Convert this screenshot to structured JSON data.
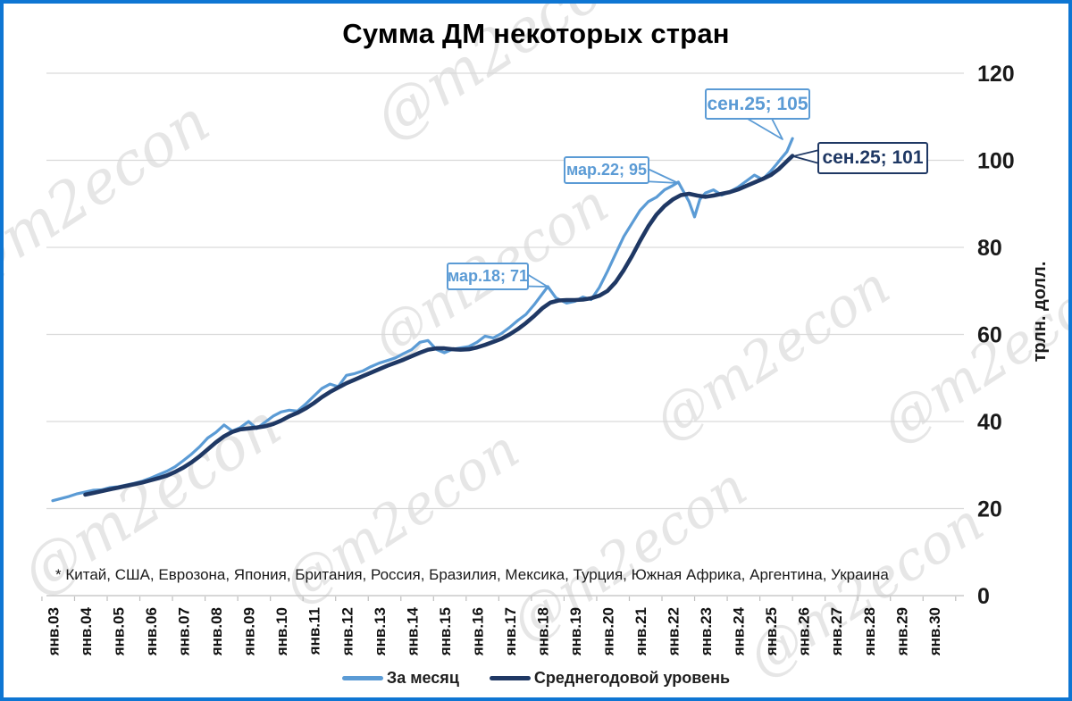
{
  "frame": {
    "border_color": "#0E76D3",
    "background": "#FFFFFF"
  },
  "title": "Сумма ДМ некоторых стран",
  "watermark": {
    "text": "@m2econ",
    "color": "rgba(140,140,140,0.22)"
  },
  "footnote": "* Китай, США, Еврозона, Япония, Британия, Россия, Бразилия, Мексика, Турция, Южная Африка, Аргентина, Украина",
  "y_axis": {
    "title": "трлн. долл.",
    "ticks": [
      0,
      20,
      40,
      60,
      80,
      100,
      120
    ],
    "range": [
      0,
      120
    ]
  },
  "x_axis": {
    "tick_labels": [
      "янв.03",
      "янв.04",
      "янв.05",
      "янв.06",
      "янв.07",
      "янв.08",
      "янв.09",
      "янв.10",
      "янв.11",
      "янв.12",
      "янв.13",
      "янв.14",
      "янв.15",
      "янв.16",
      "янв.17",
      "янв.18",
      "янв.19",
      "янв.20",
      "янв.21",
      "янв.22",
      "янв.23",
      "янв.24",
      "янв.25",
      "янв.26",
      "янв.27",
      "янв.28",
      "янв.29",
      "янв.30"
    ],
    "tick_years": [
      2003,
      2004,
      2005,
      2006,
      2007,
      2008,
      2009,
      2010,
      2011,
      2012,
      2013,
      2014,
      2015,
      2016,
      2017,
      2018,
      2019,
      2020,
      2021,
      2022,
      2023,
      2024,
      2025,
      2026,
      2027,
      2028,
      2029,
      2030
    ]
  },
  "legend": [
    {
      "label": "За месяц",
      "color": "#5B9BD5"
    },
    {
      "label": "Среднегодовой уровень",
      "color": "#1F3864"
    }
  ],
  "annotations": [
    {
      "label": "мар.18; 71",
      "series": "За месяц",
      "x": 2018.17,
      "value": 71,
      "color": "#5B9BD5"
    },
    {
      "label": "мар.22; 95",
      "series": "За месяц",
      "x": 2022.17,
      "value": 95,
      "color": "#5B9BD5"
    },
    {
      "label": "сен.25; 105",
      "series": "За месяц",
      "x": 2025.67,
      "value": 105,
      "color": "#5B9BD5"
    },
    {
      "label": "сен.25; 101",
      "series": "Среднегодовой уровень",
      "x": 2025.67,
      "value": 101,
      "color": "#1F3864"
    }
  ],
  "chart_data": {
    "type": "line",
    "title": "Сумма ДМ некоторых стран",
    "xlabel": "",
    "ylabel": "трлн. долл.",
    "ylim": [
      0,
      120
    ],
    "xlim": [
      2003,
      2030.9
    ],
    "grid": true,
    "legend_position": "bottom",
    "x_unit": "decimal_year",
    "series": [
      {
        "name": "За месяц",
        "color": "#5B9BD5",
        "width": 3.2,
        "points": [
          [
            2003.0,
            21.8
          ],
          [
            2003.25,
            22.3
          ],
          [
            2003.5,
            22.8
          ],
          [
            2003.75,
            23.4
          ],
          [
            2004.0,
            23.8
          ],
          [
            2004.25,
            24.2
          ],
          [
            2004.5,
            24.3
          ],
          [
            2004.75,
            24.8
          ],
          [
            2005.0,
            25.0
          ],
          [
            2005.25,
            25.4
          ],
          [
            2005.5,
            25.8
          ],
          [
            2005.75,
            26.3
          ],
          [
            2006.0,
            27.0
          ],
          [
            2006.25,
            27.8
          ],
          [
            2006.5,
            28.6
          ],
          [
            2006.75,
            29.6
          ],
          [
            2007.0,
            31.0
          ],
          [
            2007.25,
            32.5
          ],
          [
            2007.5,
            34.2
          ],
          [
            2007.75,
            36.2
          ],
          [
            2008.0,
            37.5
          ],
          [
            2008.25,
            39.2
          ],
          [
            2008.5,
            37.8
          ],
          [
            2008.75,
            38.6
          ],
          [
            2009.0,
            40.0
          ],
          [
            2009.25,
            38.4
          ],
          [
            2009.5,
            39.8
          ],
          [
            2009.75,
            41.2
          ],
          [
            2010.0,
            42.2
          ],
          [
            2010.25,
            42.6
          ],
          [
            2010.5,
            42.4
          ],
          [
            2010.75,
            44.0
          ],
          [
            2011.0,
            45.8
          ],
          [
            2011.25,
            47.6
          ],
          [
            2011.5,
            48.6
          ],
          [
            2011.75,
            48.0
          ],
          [
            2012.0,
            50.6
          ],
          [
            2012.25,
            51.0
          ],
          [
            2012.5,
            51.6
          ],
          [
            2012.75,
            52.6
          ],
          [
            2013.0,
            53.4
          ],
          [
            2013.25,
            54.0
          ],
          [
            2013.5,
            54.6
          ],
          [
            2013.75,
            55.6
          ],
          [
            2014.0,
            56.5
          ],
          [
            2014.25,
            58.2
          ],
          [
            2014.5,
            58.6
          ],
          [
            2014.75,
            56.6
          ],
          [
            2015.0,
            55.8
          ],
          [
            2015.25,
            56.6
          ],
          [
            2015.5,
            56.9
          ],
          [
            2015.75,
            57.2
          ],
          [
            2016.0,
            58.2
          ],
          [
            2016.25,
            59.6
          ],
          [
            2016.5,
            59.2
          ],
          [
            2016.75,
            60.2
          ],
          [
            2017.0,
            61.6
          ],
          [
            2017.25,
            63.2
          ],
          [
            2017.5,
            64.6
          ],
          [
            2017.75,
            66.8
          ],
          [
            2018.17,
            71.0
          ],
          [
            2018.42,
            68.4
          ],
          [
            2018.75,
            67.2
          ],
          [
            2019.0,
            67.6
          ],
          [
            2019.25,
            68.6
          ],
          [
            2019.5,
            68.0
          ],
          [
            2019.75,
            70.8
          ],
          [
            2020.0,
            74.5
          ],
          [
            2020.25,
            78.5
          ],
          [
            2020.5,
            82.5
          ],
          [
            2020.75,
            85.5
          ],
          [
            2021.0,
            88.5
          ],
          [
            2021.25,
            90.5
          ],
          [
            2021.5,
            91.5
          ],
          [
            2021.75,
            93.2
          ],
          [
            2022.0,
            94.2
          ],
          [
            2022.17,
            95.0
          ],
          [
            2022.5,
            90.5
          ],
          [
            2022.67,
            87.0
          ],
          [
            2022.83,
            91.0
          ],
          [
            2023.0,
            92.5
          ],
          [
            2023.25,
            93.2
          ],
          [
            2023.5,
            92.0
          ],
          [
            2023.75,
            92.8
          ],
          [
            2024.0,
            93.8
          ],
          [
            2024.25,
            95.2
          ],
          [
            2024.5,
            96.6
          ],
          [
            2024.75,
            95.6
          ],
          [
            2025.0,
            97.5
          ],
          [
            2025.17,
            99.0
          ],
          [
            2025.33,
            100.5
          ],
          [
            2025.5,
            102.0
          ],
          [
            2025.67,
            105.0
          ]
        ]
      },
      {
        "name": "Среднегодовой уровень",
        "color": "#1F3864",
        "width": 4.6,
        "points": [
          [
            2004.0,
            23.2
          ],
          [
            2004.25,
            23.6
          ],
          [
            2004.5,
            24.0
          ],
          [
            2004.75,
            24.4
          ],
          [
            2005.0,
            24.8
          ],
          [
            2005.25,
            25.2
          ],
          [
            2005.5,
            25.6
          ],
          [
            2005.75,
            26.0
          ],
          [
            2006.0,
            26.5
          ],
          [
            2006.25,
            27.0
          ],
          [
            2006.5,
            27.6
          ],
          [
            2006.75,
            28.4
          ],
          [
            2007.0,
            29.4
          ],
          [
            2007.25,
            30.6
          ],
          [
            2007.5,
            32.0
          ],
          [
            2007.75,
            33.6
          ],
          [
            2008.0,
            35.2
          ],
          [
            2008.25,
            36.6
          ],
          [
            2008.5,
            37.6
          ],
          [
            2008.75,
            38.2
          ],
          [
            2009.0,
            38.4
          ],
          [
            2009.25,
            38.6
          ],
          [
            2009.5,
            38.9
          ],
          [
            2009.75,
            39.4
          ],
          [
            2010.0,
            40.2
          ],
          [
            2010.25,
            41.2
          ],
          [
            2010.5,
            42.0
          ],
          [
            2010.75,
            43.0
          ],
          [
            2011.0,
            44.2
          ],
          [
            2011.25,
            45.6
          ],
          [
            2011.5,
            46.8
          ],
          [
            2011.75,
            47.8
          ],
          [
            2012.0,
            48.8
          ],
          [
            2012.25,
            49.6
          ],
          [
            2012.5,
            50.4
          ],
          [
            2012.75,
            51.2
          ],
          [
            2013.0,
            52.0
          ],
          [
            2013.25,
            52.8
          ],
          [
            2013.5,
            53.5
          ],
          [
            2013.75,
            54.2
          ],
          [
            2014.0,
            55.0
          ],
          [
            2014.25,
            55.8
          ],
          [
            2014.5,
            56.5
          ],
          [
            2014.75,
            56.8
          ],
          [
            2015.0,
            56.8
          ],
          [
            2015.25,
            56.6
          ],
          [
            2015.5,
            56.5
          ],
          [
            2015.75,
            56.6
          ],
          [
            2016.0,
            57.0
          ],
          [
            2016.25,
            57.6
          ],
          [
            2016.5,
            58.3
          ],
          [
            2016.75,
            59.0
          ],
          [
            2017.0,
            60.0
          ],
          [
            2017.25,
            61.2
          ],
          [
            2017.5,
            62.6
          ],
          [
            2017.75,
            64.2
          ],
          [
            2018.0,
            66.0
          ],
          [
            2018.25,
            67.3
          ],
          [
            2018.5,
            67.8
          ],
          [
            2018.75,
            67.9
          ],
          [
            2019.0,
            67.9
          ],
          [
            2019.25,
            68.0
          ],
          [
            2019.5,
            68.3
          ],
          [
            2019.75,
            68.9
          ],
          [
            2020.0,
            70.0
          ],
          [
            2020.25,
            72.0
          ],
          [
            2020.5,
            74.8
          ],
          [
            2020.75,
            78.0
          ],
          [
            2021.0,
            81.5
          ],
          [
            2021.25,
            84.8
          ],
          [
            2021.5,
            87.5
          ],
          [
            2021.75,
            89.5
          ],
          [
            2022.0,
            91.0
          ],
          [
            2022.25,
            92.0
          ],
          [
            2022.5,
            92.3
          ],
          [
            2022.75,
            91.9
          ],
          [
            2023.0,
            91.6
          ],
          [
            2023.25,
            91.9
          ],
          [
            2023.5,
            92.3
          ],
          [
            2023.75,
            92.7
          ],
          [
            2024.0,
            93.3
          ],
          [
            2024.25,
            94.1
          ],
          [
            2024.5,
            94.9
          ],
          [
            2024.75,
            95.7
          ],
          [
            2025.0,
            96.6
          ],
          [
            2025.25,
            98.0
          ],
          [
            2025.5,
            99.8
          ],
          [
            2025.67,
            101.0
          ]
        ]
      }
    ]
  }
}
